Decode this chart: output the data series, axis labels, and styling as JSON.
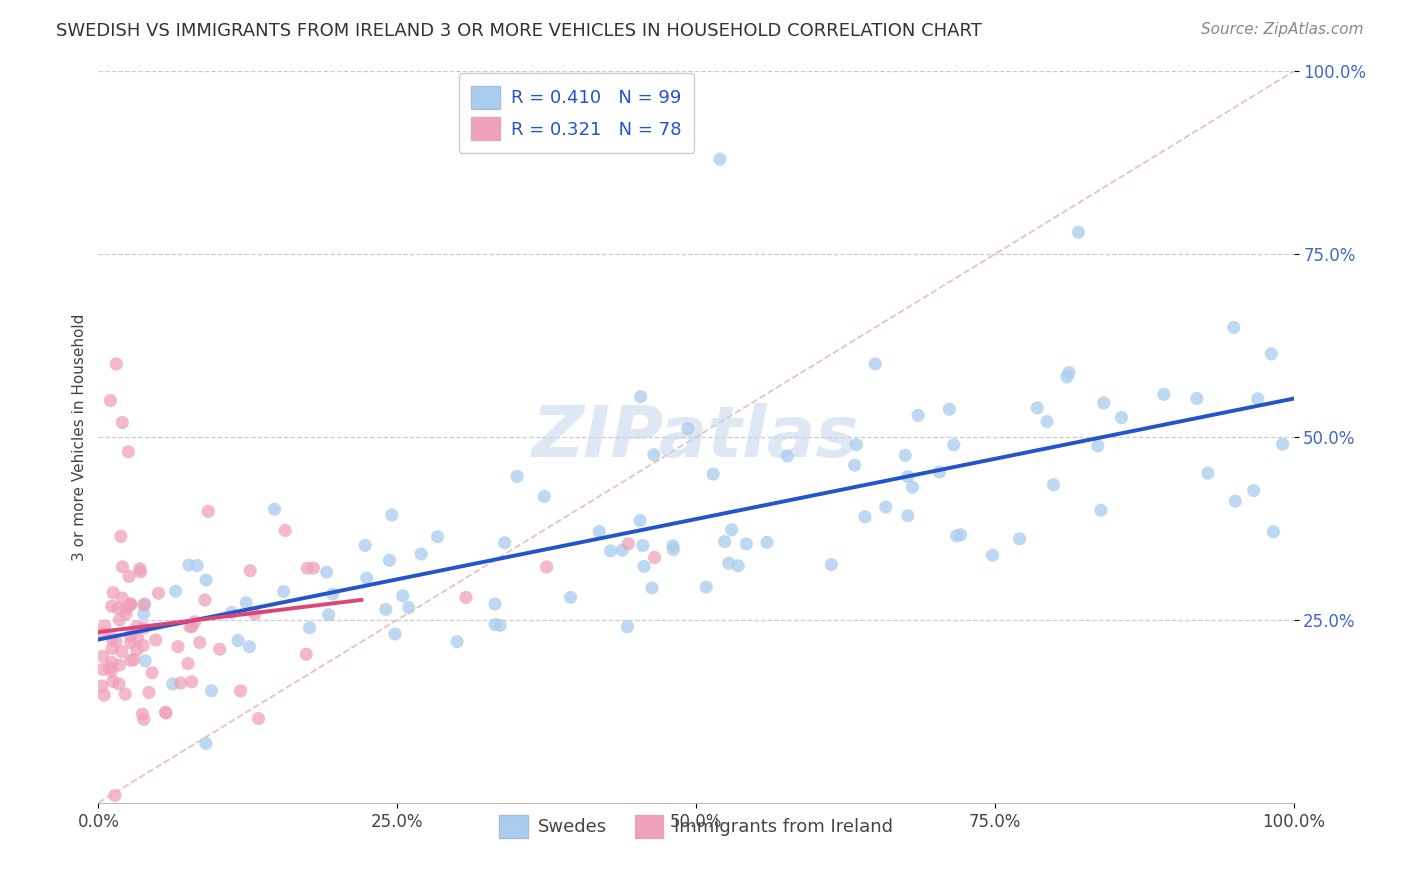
{
  "title": "SWEDISH VS IMMIGRANTS FROM IRELAND 3 OR MORE VEHICLES IN HOUSEHOLD CORRELATION CHART",
  "source": "Source: ZipAtlas.com",
  "ylabel": "3 or more Vehicles in Household",
  "xlim": [
    0,
    1
  ],
  "ylim": [
    0,
    1
  ],
  "xticks": [
    0.0,
    0.25,
    0.5,
    0.75,
    1.0
  ],
  "yticks": [
    0.25,
    0.5,
    0.75,
    1.0
  ],
  "xticklabels": [
    "0.0%",
    "25.0%",
    "50.0%",
    "75.0%",
    "100.0%"
  ],
  "yticklabels": [
    "25.0%",
    "50.0%",
    "75.0%",
    "100.0%"
  ],
  "blue_scatter_color": "#aaccee",
  "blue_scatter_edge": "none",
  "pink_scatter_color": "#f0a0b8",
  "pink_scatter_edge": "none",
  "trend_blue_color": "#2255cc",
  "trend_pink_color": "#dd4477",
  "diagonal_color": "#e8b8c0",
  "diagonal_style": "--",
  "grid_color": "#cccccc",
  "grid_style": "--",
  "tick_color_x": "#444444",
  "tick_color_y": "#4466cc",
  "legend_R_blue": "0.410",
  "legend_N_blue": "99",
  "legend_R_pink": "0.321",
  "legend_N_pink": "78",
  "legend_label_blue": "Swedes",
  "legend_label_pink": "Immigrants from Ireland",
  "legend_text_color": "#2255cc",
  "watermark": "ZIPatlas",
  "watermark_color": "#c8d8ee",
  "watermark_alpha": 0.6,
  "watermark_fontsize": 52,
  "title_fontsize": 13,
  "source_fontsize": 11,
  "ylabel_fontsize": 11,
  "tick_fontsize": 12,
  "legend_fontsize": 13
}
